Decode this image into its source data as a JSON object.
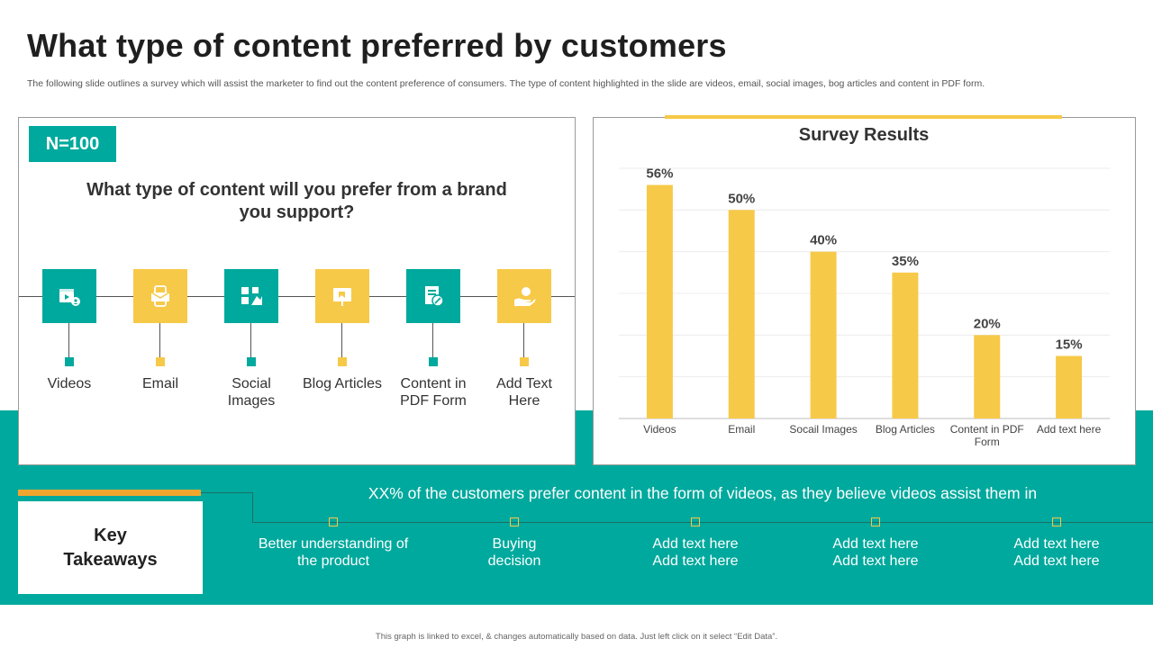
{
  "title": "What type of content preferred by customers",
  "subtitle": "The following slide outlines a survey which will assist the marketer to find out the content preference of consumers. The type of content highlighted in the slide are videos, email, social images, bog articles and content in PDF form.",
  "left_panel": {
    "badge": "N=100",
    "question": "What type of content will  you prefer from a brand you support?",
    "categories": [
      {
        "label": "Videos",
        "icon": "video-icon",
        "color": "#00a99d"
      },
      {
        "label": "Email",
        "icon": "email-icon",
        "color": "#f7c948"
      },
      {
        "label": "Social Images",
        "icon": "social-images-icon",
        "color": "#00a99d"
      },
      {
        "label": "Blog Articles",
        "icon": "blog-icon",
        "color": "#f7c948"
      },
      {
        "label": "Content in PDF Form",
        "icon": "pdf-document-icon",
        "color": "#00a99d"
      },
      {
        "label": "Add Text Here",
        "icon": "hand-icon",
        "color": "#f7c948"
      }
    ]
  },
  "chart_data": {
    "type": "bar",
    "title": "Survey Results",
    "categories": [
      "Videos",
      "Email",
      "Socail Images",
      "Blog Articles",
      "Content in PDF Form",
      "Add text here"
    ],
    "values": [
      56,
      50,
      40,
      35,
      20,
      15
    ],
    "data_labels": [
      "56%",
      "50%",
      "40%",
      "35%",
      "20%",
      "15%"
    ],
    "ylim": [
      0,
      60
    ],
    "grid": true,
    "bar_color": "#f7c948"
  },
  "takeaways": {
    "heading": "Key Takeaways",
    "headline": "XX% of the customers prefer content in the form of videos, as they believe videos assist them in",
    "items": [
      "Better understanding of the product",
      "Buying decision",
      "Add text here Add text here",
      "Add text here Add text here",
      "Add text here Add text here"
    ]
  },
  "footer": "This graph is linked to excel, & changes automatically based on data. Just left click on it select “Edit Data”.",
  "colors": {
    "teal": "#00a99d",
    "yellow": "#f7c948",
    "orange": "#f0a62e"
  }
}
